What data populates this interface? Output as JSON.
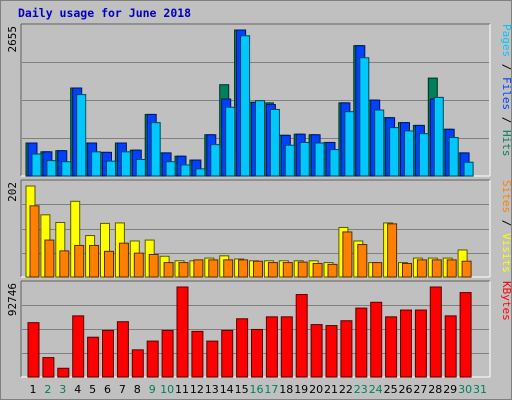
{
  "title": "Daily usage for June 2018",
  "colors": {
    "background": "#c0c0c0",
    "hits": "#00805c",
    "files": "#0040ff",
    "pages": "#00c8ff",
    "visits": "#ffff00",
    "sites": "#ff8000",
    "kbytes": "#ff0000",
    "weekday_label": "#000000",
    "weekend_label": "#00805c"
  },
  "chart_data": [
    {
      "type": "bar",
      "name": "hits-files-pages",
      "max_label": "2655",
      "ylim": [
        0,
        2655
      ],
      "grid": true,
      "right_labels": [
        {
          "text": "Hits",
          "color": "#00805c"
        },
        {
          "text": " / ",
          "color": "#000000"
        },
        {
          "text": "Files",
          "color": "#0040ff"
        },
        {
          "text": " / ",
          "color": "#000000"
        },
        {
          "text": "Pages",
          "color": "#00c8ff"
        }
      ],
      "series": [
        {
          "name": "Hits",
          "values": [
            600,
            440,
            460,
            1600,
            600,
            430,
            600,
            470,
            1120,
            420,
            360,
            290,
            750,
            1660,
            2655,
            1340,
            1330,
            740,
            760,
            750,
            610,
            1330,
            2370,
            1380,
            1060,
            970,
            920,
            1780,
            850,
            420,
            0
          ]
        },
        {
          "name": "Files",
          "values": [
            600,
            440,
            460,
            1600,
            600,
            430,
            600,
            470,
            1120,
            420,
            360,
            290,
            750,
            1400,
            2655,
            1340,
            1300,
            740,
            760,
            750,
            610,
            1330,
            2370,
            1380,
            1060,
            970,
            920,
            1400,
            850,
            420,
            0
          ]
        },
        {
          "name": "Pages",
          "values": [
            400,
            280,
            260,
            1480,
            440,
            270,
            440,
            300,
            970,
            260,
            200,
            130,
            570,
            1250,
            2550,
            1370,
            1210,
            560,
            610,
            600,
            480,
            1170,
            2150,
            1200,
            880,
            820,
            770,
            1430,
            700,
            250,
            0
          ]
        }
      ]
    },
    {
      "type": "bar",
      "name": "visits-sites",
      "max_label": "202",
      "ylim": [
        0,
        202
      ],
      "grid": true,
      "right_labels": [
        {
          "text": "Visits",
          "color": "#ffff00"
        },
        {
          "text": " / ",
          "color": "#000000"
        },
        {
          "text": "Sites",
          "color": "#ff8000"
        }
      ],
      "series": [
        {
          "name": "Visits",
          "values": [
            202,
            138,
            121,
            168,
            92,
            119,
            120,
            80,
            82,
            46,
            36,
            36,
            42,
            47,
            40,
            36,
            36,
            36,
            36,
            36,
            32,
            110,
            80,
            32,
            120,
            32,
            42,
            42,
            42,
            60,
            0
          ]
        },
        {
          "name": "Sites",
          "values": [
            158,
            82,
            58,
            70,
            70,
            57,
            75,
            53,
            50,
            32,
            32,
            38,
            38,
            38,
            38,
            35,
            32,
            32,
            33,
            30,
            28,
            100,
            72,
            32,
            118,
            30,
            38,
            38,
            38,
            35,
            0
          ]
        }
      ]
    },
    {
      "type": "bar",
      "name": "kbytes",
      "max_label": "92746",
      "ylim": [
        0,
        92746
      ],
      "grid": true,
      "right_labels": [
        {
          "text": "KBytes",
          "color": "#ff0000"
        }
      ],
      "series": [
        {
          "name": "KBytes",
          "values": [
            56000,
            20000,
            9000,
            63000,
            41000,
            48000,
            57000,
            28000,
            37000,
            48000,
            92746,
            47000,
            37000,
            48000,
            60000,
            49000,
            62000,
            62000,
            85000,
            54000,
            53000,
            58000,
            71000,
            77000,
            62000,
            69000,
            69000,
            92746,
            63000,
            87000,
            0
          ]
        }
      ]
    }
  ],
  "days": [
    "1",
    "2",
    "3",
    "4",
    "5",
    "6",
    "7",
    "8",
    "9",
    "10",
    "11",
    "12",
    "13",
    "14",
    "15",
    "16",
    "17",
    "18",
    "19",
    "20",
    "21",
    "22",
    "23",
    "24",
    "25",
    "26",
    "27",
    "28",
    "29",
    "30",
    "31"
  ],
  "weekend_days": [
    "2",
    "3",
    "9",
    "10",
    "16",
    "17",
    "23",
    "24",
    "30",
    "31"
  ]
}
